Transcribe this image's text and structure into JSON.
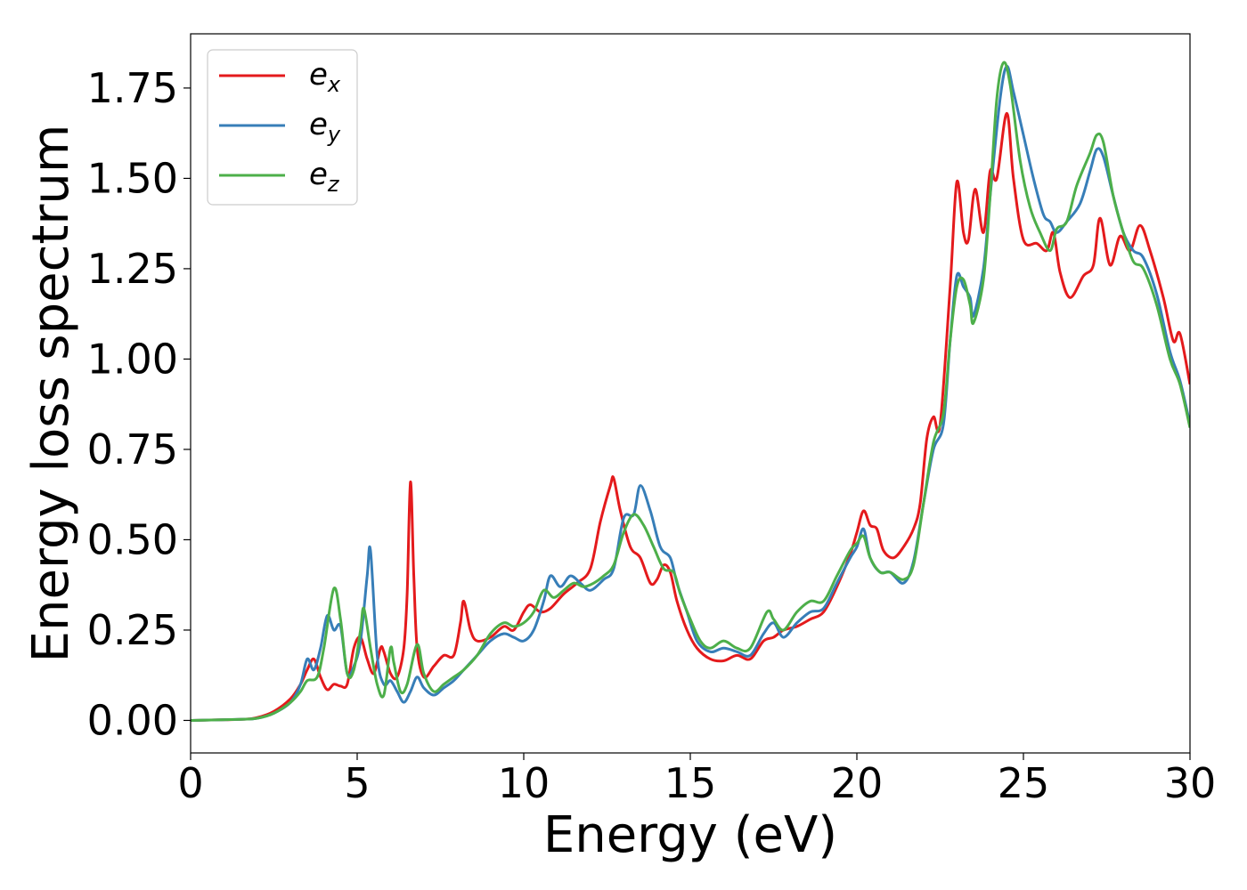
{
  "chart_data": {
    "type": "line",
    "xlabel": "Energy (eV)",
    "ylabel": "Energy loss spectrum",
    "xlim": [
      0,
      30
    ],
    "ylim": [
      -0.09,
      1.9
    ],
    "xticks": [
      0,
      5,
      10,
      15,
      20,
      25,
      30
    ],
    "xtick_labels": [
      "0",
      "5",
      "10",
      "15",
      "20",
      "25",
      "30"
    ],
    "yticks": [
      0.0,
      0.25,
      0.5,
      0.75,
      1.0,
      1.25,
      1.5,
      1.75
    ],
    "ytick_labels": [
      "0.00",
      "0.25",
      "0.50",
      "0.75",
      "1.00",
      "1.25",
      "1.50",
      "1.75"
    ],
    "grid": false,
    "legend_position": "top-left",
    "series": [
      {
        "name": "e_x",
        "legend_base": "e",
        "legend_sub": "x",
        "color": "#e41a1c",
        "points": [
          [
            0,
            0
          ],
          [
            1.5,
            0.003
          ],
          [
            2,
            0.008
          ],
          [
            2.5,
            0.025
          ],
          [
            3,
            0.06
          ],
          [
            3.3,
            0.1
          ],
          [
            3.5,
            0.14
          ],
          [
            3.7,
            0.17
          ],
          [
            3.9,
            0.12
          ],
          [
            4.1,
            0.085
          ],
          [
            4.3,
            0.1
          ],
          [
            4.5,
            0.095
          ],
          [
            4.7,
            0.1
          ],
          [
            4.9,
            0.2
          ],
          [
            5.1,
            0.23
          ],
          [
            5.3,
            0.17
          ],
          [
            5.5,
            0.13
          ],
          [
            5.7,
            0.2
          ],
          [
            5.8,
            0.19
          ],
          [
            6.0,
            0.13
          ],
          [
            6.2,
            0.12
          ],
          [
            6.4,
            0.2
          ],
          [
            6.5,
            0.35
          ],
          [
            6.6,
            0.66
          ],
          [
            6.7,
            0.4
          ],
          [
            6.8,
            0.2
          ],
          [
            7.0,
            0.12
          ],
          [
            7.3,
            0.15
          ],
          [
            7.6,
            0.18
          ],
          [
            7.9,
            0.18
          ],
          [
            8.1,
            0.27
          ],
          [
            8.2,
            0.33
          ],
          [
            8.4,
            0.25
          ],
          [
            8.6,
            0.22
          ],
          [
            9.0,
            0.23
          ],
          [
            9.4,
            0.26
          ],
          [
            9.7,
            0.25
          ],
          [
            10.0,
            0.3
          ],
          [
            10.2,
            0.32
          ],
          [
            10.5,
            0.3
          ],
          [
            10.8,
            0.31
          ],
          [
            11.2,
            0.35
          ],
          [
            11.6,
            0.38
          ],
          [
            12.0,
            0.42
          ],
          [
            12.3,
            0.55
          ],
          [
            12.6,
            0.65
          ],
          [
            12.7,
            0.67
          ],
          [
            12.9,
            0.58
          ],
          [
            13.2,
            0.48
          ],
          [
            13.5,
            0.45
          ],
          [
            13.8,
            0.38
          ],
          [
            14.0,
            0.39
          ],
          [
            14.2,
            0.43
          ],
          [
            14.4,
            0.41
          ],
          [
            14.6,
            0.33
          ],
          [
            14.9,
            0.25
          ],
          [
            15.2,
            0.2
          ],
          [
            15.6,
            0.17
          ],
          [
            16.0,
            0.165
          ],
          [
            16.4,
            0.18
          ],
          [
            16.8,
            0.17
          ],
          [
            17.2,
            0.22
          ],
          [
            17.5,
            0.23
          ],
          [
            17.8,
            0.25
          ],
          [
            18.2,
            0.26
          ],
          [
            18.6,
            0.28
          ],
          [
            19.0,
            0.3
          ],
          [
            19.4,
            0.37
          ],
          [
            19.8,
            0.46
          ],
          [
            20.0,
            0.52
          ],
          [
            20.2,
            0.58
          ],
          [
            20.4,
            0.54
          ],
          [
            20.6,
            0.53
          ],
          [
            20.8,
            0.47
          ],
          [
            21.1,
            0.45
          ],
          [
            21.4,
            0.48
          ],
          [
            21.7,
            0.53
          ],
          [
            21.9,
            0.6
          ],
          [
            22.1,
            0.78
          ],
          [
            22.3,
            0.84
          ],
          [
            22.5,
            0.82
          ],
          [
            22.8,
            1.2
          ],
          [
            23.0,
            1.49
          ],
          [
            23.2,
            1.35
          ],
          [
            23.35,
            1.33
          ],
          [
            23.55,
            1.47
          ],
          [
            23.8,
            1.35
          ],
          [
            24.0,
            1.52
          ],
          [
            24.2,
            1.5
          ],
          [
            24.5,
            1.68
          ],
          [
            24.7,
            1.5
          ],
          [
            25.0,
            1.33
          ],
          [
            25.4,
            1.32
          ],
          [
            25.7,
            1.3
          ],
          [
            25.9,
            1.35
          ],
          [
            26.1,
            1.24
          ],
          [
            26.4,
            1.17
          ],
          [
            26.8,
            1.23
          ],
          [
            27.1,
            1.26
          ],
          [
            27.3,
            1.39
          ],
          [
            27.6,
            1.26
          ],
          [
            27.9,
            1.34
          ],
          [
            28.2,
            1.3
          ],
          [
            28.5,
            1.37
          ],
          [
            28.8,
            1.3
          ],
          [
            29.2,
            1.17
          ],
          [
            29.5,
            1.05
          ],
          [
            29.7,
            1.07
          ],
          [
            30.0,
            0.93
          ]
        ]
      },
      {
        "name": "e_y",
        "legend_base": "e",
        "legend_sub": "y",
        "color": "#377eb8",
        "points": [
          [
            0,
            0
          ],
          [
            1.5,
            0.003
          ],
          [
            2,
            0.006
          ],
          [
            2.5,
            0.02
          ],
          [
            3,
            0.05
          ],
          [
            3.3,
            0.1
          ],
          [
            3.5,
            0.17
          ],
          [
            3.7,
            0.14
          ],
          [
            3.9,
            0.2
          ],
          [
            4.1,
            0.29
          ],
          [
            4.3,
            0.25
          ],
          [
            4.5,
            0.26
          ],
          [
            4.7,
            0.13
          ],
          [
            4.9,
            0.15
          ],
          [
            5.1,
            0.22
          ],
          [
            5.3,
            0.4
          ],
          [
            5.4,
            0.47
          ],
          [
            5.6,
            0.18
          ],
          [
            5.8,
            0.1
          ],
          [
            6.0,
            0.11
          ],
          [
            6.2,
            0.08
          ],
          [
            6.4,
            0.05
          ],
          [
            6.6,
            0.08
          ],
          [
            6.8,
            0.12
          ],
          [
            7.0,
            0.09
          ],
          [
            7.3,
            0.07
          ],
          [
            7.6,
            0.09
          ],
          [
            7.9,
            0.11
          ],
          [
            8.2,
            0.14
          ],
          [
            8.6,
            0.18
          ],
          [
            9.0,
            0.22
          ],
          [
            9.4,
            0.24
          ],
          [
            9.7,
            0.23
          ],
          [
            10.0,
            0.22
          ],
          [
            10.3,
            0.25
          ],
          [
            10.6,
            0.33
          ],
          [
            10.8,
            0.4
          ],
          [
            11.1,
            0.37
          ],
          [
            11.4,
            0.4
          ],
          [
            11.7,
            0.38
          ],
          [
            12.0,
            0.36
          ],
          [
            12.4,
            0.39
          ],
          [
            12.7,
            0.42
          ],
          [
            13.0,
            0.56
          ],
          [
            13.3,
            0.57
          ],
          [
            13.5,
            0.65
          ],
          [
            13.8,
            0.58
          ],
          [
            14.1,
            0.48
          ],
          [
            14.4,
            0.45
          ],
          [
            14.6,
            0.38
          ],
          [
            14.9,
            0.3
          ],
          [
            15.2,
            0.22
          ],
          [
            15.6,
            0.19
          ],
          [
            16.0,
            0.2
          ],
          [
            16.4,
            0.19
          ],
          [
            16.8,
            0.18
          ],
          [
            17.2,
            0.24
          ],
          [
            17.5,
            0.27
          ],
          [
            17.8,
            0.23
          ],
          [
            18.2,
            0.27
          ],
          [
            18.6,
            0.3
          ],
          [
            19.0,
            0.31
          ],
          [
            19.4,
            0.38
          ],
          [
            19.8,
            0.45
          ],
          [
            20.0,
            0.48
          ],
          [
            20.2,
            0.53
          ],
          [
            20.4,
            0.45
          ],
          [
            20.7,
            0.41
          ],
          [
            21.0,
            0.41
          ],
          [
            21.4,
            0.38
          ],
          [
            21.7,
            0.44
          ],
          [
            22.0,
            0.6
          ],
          [
            22.3,
            0.75
          ],
          [
            22.6,
            0.82
          ],
          [
            22.8,
            1.05
          ],
          [
            23.0,
            1.23
          ],
          [
            23.2,
            1.2
          ],
          [
            23.4,
            1.17
          ],
          [
            23.5,
            1.12
          ],
          [
            23.8,
            1.25
          ],
          [
            24.0,
            1.45
          ],
          [
            24.3,
            1.72
          ],
          [
            24.5,
            1.81
          ],
          [
            24.7,
            1.74
          ],
          [
            25.0,
            1.62
          ],
          [
            25.3,
            1.5
          ],
          [
            25.6,
            1.4
          ],
          [
            25.8,
            1.38
          ],
          [
            26.0,
            1.35
          ],
          [
            26.3,
            1.38
          ],
          [
            26.7,
            1.43
          ],
          [
            27.0,
            1.52
          ],
          [
            27.2,
            1.58
          ],
          [
            27.4,
            1.56
          ],
          [
            27.7,
            1.45
          ],
          [
            28.0,
            1.35
          ],
          [
            28.3,
            1.3
          ],
          [
            28.6,
            1.28
          ],
          [
            29.0,
            1.18
          ],
          [
            29.4,
            1.02
          ],
          [
            29.7,
            0.94
          ],
          [
            30.0,
            0.82
          ]
        ]
      },
      {
        "name": "e_z",
        "legend_base": "e",
        "legend_sub": "z",
        "color": "#4daf4a",
        "points": [
          [
            0,
            0
          ],
          [
            1.5,
            0.003
          ],
          [
            2,
            0.006
          ],
          [
            2.5,
            0.02
          ],
          [
            3,
            0.05
          ],
          [
            3.3,
            0.08
          ],
          [
            3.5,
            0.11
          ],
          [
            3.8,
            0.12
          ],
          [
            4.0,
            0.2
          ],
          [
            4.3,
            0.365
          ],
          [
            4.5,
            0.28
          ],
          [
            4.7,
            0.13
          ],
          [
            4.9,
            0.14
          ],
          [
            5.1,
            0.25
          ],
          [
            5.2,
            0.31
          ],
          [
            5.4,
            0.2
          ],
          [
            5.6,
            0.1
          ],
          [
            5.8,
            0.07
          ],
          [
            6.0,
            0.2
          ],
          [
            6.1,
            0.16
          ],
          [
            6.3,
            0.08
          ],
          [
            6.5,
            0.1
          ],
          [
            6.8,
            0.21
          ],
          [
            7.0,
            0.13
          ],
          [
            7.3,
            0.08
          ],
          [
            7.6,
            0.1
          ],
          [
            7.9,
            0.12
          ],
          [
            8.2,
            0.14
          ],
          [
            8.6,
            0.18
          ],
          [
            9.0,
            0.24
          ],
          [
            9.4,
            0.27
          ],
          [
            9.7,
            0.26
          ],
          [
            10.0,
            0.27
          ],
          [
            10.3,
            0.3
          ],
          [
            10.6,
            0.36
          ],
          [
            10.9,
            0.34
          ],
          [
            11.2,
            0.36
          ],
          [
            11.5,
            0.38
          ],
          [
            11.8,
            0.37
          ],
          [
            12.1,
            0.38
          ],
          [
            12.4,
            0.4
          ],
          [
            12.7,
            0.43
          ],
          [
            13.0,
            0.52
          ],
          [
            13.3,
            0.57
          ],
          [
            13.6,
            0.54
          ],
          [
            13.9,
            0.48
          ],
          [
            14.2,
            0.42
          ],
          [
            14.5,
            0.41
          ],
          [
            14.7,
            0.35
          ],
          [
            15.0,
            0.28
          ],
          [
            15.3,
            0.22
          ],
          [
            15.6,
            0.2
          ],
          [
            16.0,
            0.22
          ],
          [
            16.4,
            0.2
          ],
          [
            16.8,
            0.2
          ],
          [
            17.3,
            0.3
          ],
          [
            17.5,
            0.28
          ],
          [
            17.8,
            0.25
          ],
          [
            18.2,
            0.3
          ],
          [
            18.6,
            0.33
          ],
          [
            19.0,
            0.33
          ],
          [
            19.4,
            0.4
          ],
          [
            19.8,
            0.47
          ],
          [
            20.0,
            0.49
          ],
          [
            20.2,
            0.51
          ],
          [
            20.4,
            0.45
          ],
          [
            20.7,
            0.41
          ],
          [
            21.0,
            0.41
          ],
          [
            21.4,
            0.39
          ],
          [
            21.7,
            0.43
          ],
          [
            22.0,
            0.6
          ],
          [
            22.3,
            0.77
          ],
          [
            22.6,
            0.85
          ],
          [
            22.8,
            1.05
          ],
          [
            23.0,
            1.2
          ],
          [
            23.2,
            1.22
          ],
          [
            23.4,
            1.15
          ],
          [
            23.5,
            1.1
          ],
          [
            23.8,
            1.22
          ],
          [
            24.0,
            1.45
          ],
          [
            24.2,
            1.72
          ],
          [
            24.4,
            1.82
          ],
          [
            24.6,
            1.76
          ],
          [
            24.9,
            1.55
          ],
          [
            25.2,
            1.42
          ],
          [
            25.5,
            1.35
          ],
          [
            25.8,
            1.3
          ],
          [
            26.0,
            1.36
          ],
          [
            26.3,
            1.38
          ],
          [
            26.6,
            1.48
          ],
          [
            27.0,
            1.57
          ],
          [
            27.2,
            1.62
          ],
          [
            27.4,
            1.6
          ],
          [
            27.7,
            1.45
          ],
          [
            28.0,
            1.35
          ],
          [
            28.3,
            1.27
          ],
          [
            28.6,
            1.25
          ],
          [
            29.0,
            1.15
          ],
          [
            29.4,
            1.0
          ],
          [
            29.7,
            0.93
          ],
          [
            30.0,
            0.81
          ]
        ]
      }
    ]
  }
}
